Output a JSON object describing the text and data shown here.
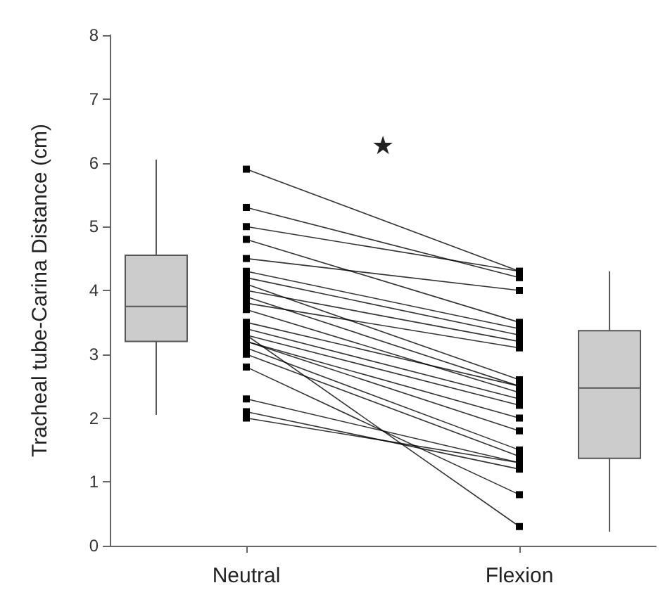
{
  "chart_data": {
    "type": "line",
    "ylabel": "Tracheal tube-Carina Distance (cm)",
    "categories": [
      "Neutral",
      "Flexion"
    ],
    "ylim": [
      0,
      8
    ],
    "yticks": [
      0,
      1,
      2,
      3,
      4,
      5,
      6,
      7,
      8
    ],
    "grid": false,
    "marker": "square",
    "line_style": "solid",
    "annotations": [
      "★"
    ],
    "series": [
      {
        "color": "#000000",
        "values": [
          5.9,
          4.3
        ]
      },
      {
        "color": "#000000",
        "values": [
          5.3,
          4.2
        ]
      },
      {
        "color": "#000000",
        "values": [
          5.0,
          4.3
        ]
      },
      {
        "color": "#000000",
        "values": [
          4.8,
          3.5
        ]
      },
      {
        "color": "#000000",
        "values": [
          4.5,
          4.0
        ]
      },
      {
        "color": "#000000",
        "values": [
          4.3,
          3.4
        ]
      },
      {
        "color": "#000000",
        "values": [
          4.2,
          3.3
        ]
      },
      {
        "color": "#000000",
        "values": [
          4.1,
          2.6
        ]
      },
      {
        "color": "#000000",
        "values": [
          4.0,
          3.2
        ]
      },
      {
        "color": "#000000",
        "values": [
          3.9,
          2.5
        ]
      },
      {
        "color": "#000000",
        "values": [
          3.8,
          3.1
        ]
      },
      {
        "color": "#000000",
        "values": [
          3.7,
          2.4
        ]
      },
      {
        "color": "#000000",
        "values": [
          3.5,
          2.5
        ]
      },
      {
        "color": "#000000",
        "values": [
          3.4,
          2.3
        ]
      },
      {
        "color": "#000000",
        "values": [
          3.3,
          2.2
        ]
      },
      {
        "color": "#000000",
        "values": [
          3.2,
          1.8
        ]
      },
      {
        "color": "#000000",
        "values": [
          3.2,
          2.0
        ]
      },
      {
        "color": "#000000",
        "values": [
          3.1,
          1.5
        ]
      },
      {
        "color": "#000000",
        "values": [
          3.0,
          1.4
        ]
      },
      {
        "color": "#000000",
        "values": [
          2.8,
          0.8
        ]
      },
      {
        "color": "#000000",
        "values": [
          2.3,
          1.3
        ]
      },
      {
        "color": "#000000",
        "values": [
          2.1,
          1.2
        ]
      },
      {
        "color": "#000000",
        "values": [
          2.0,
          1.3
        ]
      },
      {
        "color": "#000000",
        "values": [
          3.3,
          0.3
        ]
      },
      {
        "type": "box",
        "color": "#cccccc",
        "boxes": [
          {
            "low": 2.05,
            "q1": 3.2,
            "median": 3.75,
            "q3": 4.55,
            "high": 6.05
          },
          {
            "low": 0.22,
            "q1": 1.37,
            "median": 2.47,
            "q3": 3.37,
            "high": 4.3
          }
        ]
      }
    ]
  }
}
